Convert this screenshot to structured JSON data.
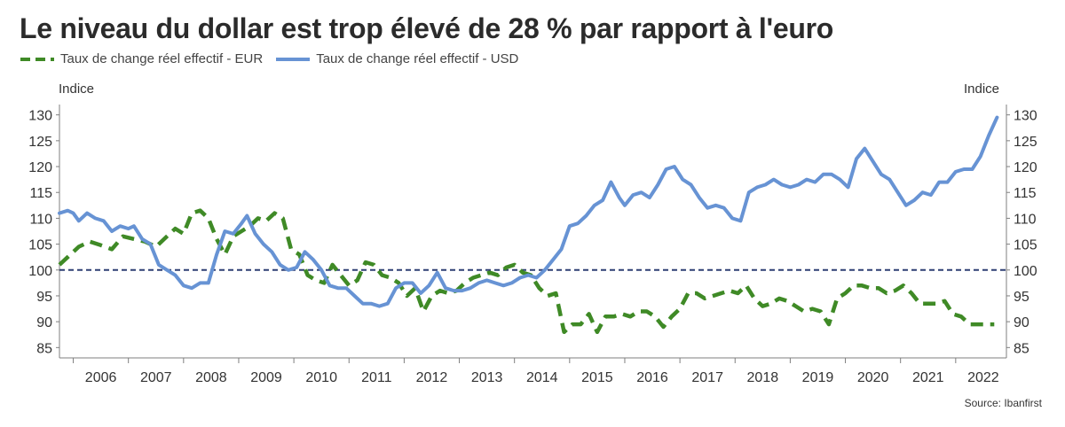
{
  "title": "Le niveau du dollar est trop élevé de 28 % par rapport à l'euro",
  "source": "Source: Ibanfirst",
  "colors": {
    "eur": "#3f8a26",
    "usd": "#6793d4",
    "reference": "#2e3f73",
    "axis": "#7f7f7f"
  },
  "chart_data": {
    "type": "line",
    "ylabel_left": "Indice",
    "ylabel_right": "Indice",
    "ylim": [
      83,
      132
    ],
    "yticks": [
      85,
      90,
      95,
      100,
      105,
      110,
      115,
      120,
      125,
      130
    ],
    "xlim": [
      2005.75,
      2022.92
    ],
    "xticks": [
      "2006",
      "2007",
      "2008",
      "2009",
      "2010",
      "2011",
      "2012",
      "2013",
      "2014",
      "2015",
      "2016",
      "2017",
      "2018",
      "2019",
      "2020",
      "2021",
      "2022"
    ],
    "reference_line": 100,
    "grid": false,
    "legend": "top-left",
    "series": [
      {
        "name": "Taux de change réel effectif - EUR",
        "style": "dashed",
        "x": [
          2005.75,
          2005.9,
          2006.1,
          2006.3,
          2006.5,
          2006.7,
          2006.9,
          2007.1,
          2007.3,
          2007.5,
          2007.7,
          2007.85,
          2008.0,
          2008.15,
          2008.3,
          2008.45,
          2008.6,
          2008.75,
          2008.9,
          2009.05,
          2009.2,
          2009.35,
          2009.5,
          2009.65,
          2009.8,
          2009.95,
          2010.1,
          2010.25,
          2010.4,
          2010.55,
          2010.7,
          2010.85,
          2011.0,
          2011.15,
          2011.3,
          2011.45,
          2011.6,
          2011.75,
          2011.9,
          2012.05,
          2012.2,
          2012.35,
          2012.5,
          2012.65,
          2012.8,
          2012.95,
          2013.1,
          2013.25,
          2013.4,
          2013.55,
          2013.7,
          2013.85,
          2014.0,
          2014.15,
          2014.3,
          2014.45,
          2014.6,
          2014.75,
          2014.9,
          2015.05,
          2015.2,
          2015.35,
          2015.5,
          2015.65,
          2015.8,
          2015.95,
          2016.1,
          2016.25,
          2016.4,
          2016.55,
          2016.7,
          2016.85,
          2017.0,
          2017.15,
          2017.3,
          2017.45,
          2017.6,
          2017.75,
          2017.9,
          2018.05,
          2018.2,
          2018.35,
          2018.5,
          2018.65,
          2018.8,
          2018.95,
          2019.1,
          2019.25,
          2019.4,
          2019.55,
          2019.7,
          2019.85,
          2020.0,
          2020.15,
          2020.3,
          2020.45,
          2020.6,
          2020.75,
          2020.9,
          2021.05,
          2021.2,
          2021.35,
          2021.5,
          2021.65,
          2021.8,
          2021.95,
          2022.1,
          2022.25,
          2022.4,
          2022.55,
          2022.7
        ],
        "values": [
          101.0,
          102.5,
          104.5,
          105.5,
          104.8,
          104.0,
          106.5,
          106.0,
          105.5,
          104.5,
          106.5,
          108.0,
          107.0,
          111.0,
          111.5,
          110.0,
          106.0,
          103.0,
          106.5,
          107.5,
          108.5,
          110.0,
          109.5,
          111.0,
          110.0,
          104.0,
          103.0,
          99.0,
          98.0,
          97.5,
          101.0,
          99.0,
          97.0,
          98.0,
          101.5,
          101.0,
          99.0,
          98.5,
          97.5,
          95.0,
          96.5,
          92.0,
          95.0,
          96.0,
          95.5,
          96.0,
          97.5,
          98.5,
          99.0,
          99.5,
          99.0,
          100.5,
          101.0,
          99.5,
          99.0,
          96.5,
          95.0,
          95.5,
          88.0,
          89.5,
          89.5,
          91.5,
          88.0,
          91.0,
          91.0,
          91.5,
          91.0,
          92.0,
          92.0,
          91.0,
          89.0,
          91.0,
          92.5,
          95.5,
          95.5,
          94.5,
          95.0,
          95.5,
          96.0,
          95.5,
          97.0,
          94.5,
          93.0,
          93.5,
          94.5,
          94.0,
          93.0,
          92.0,
          92.5,
          92.0,
          89.5,
          94.5,
          95.5,
          97.0,
          97.0,
          96.5,
          96.5,
          95.5,
          96.0,
          97.0,
          95.5,
          93.5,
          93.5,
          93.5,
          94.0,
          91.5,
          91.0,
          89.5,
          89.5,
          89.5,
          89.5
        ]
      },
      {
        "name": "Taux de change réel effectif - USD",
        "style": "solid",
        "x": [
          2005.75,
          2005.9,
          2006.0,
          2006.1,
          2006.25,
          2006.4,
          2006.55,
          2006.7,
          2006.85,
          2007.0,
          2007.1,
          2007.25,
          2007.4,
          2007.55,
          2007.7,
          2007.85,
          2008.0,
          2008.15,
          2008.3,
          2008.45,
          2008.6,
          2008.75,
          2008.9,
          2009.05,
          2009.15,
          2009.3,
          2009.45,
          2009.6,
          2009.75,
          2009.9,
          2010.05,
          2010.2,
          2010.35,
          2010.5,
          2010.65,
          2010.8,
          2010.95,
          2011.1,
          2011.25,
          2011.4,
          2011.55,
          2011.7,
          2011.85,
          2012.0,
          2012.15,
          2012.3,
          2012.45,
          2012.6,
          2012.75,
          2012.9,
          2013.05,
          2013.2,
          2013.35,
          2013.5,
          2013.65,
          2013.8,
          2013.95,
          2014.1,
          2014.25,
          2014.4,
          2014.55,
          2014.7,
          2014.85,
          2015.0,
          2015.15,
          2015.3,
          2015.45,
          2015.6,
          2015.75,
          2015.9,
          2016.0,
          2016.15,
          2016.3,
          2016.45,
          2016.6,
          2016.75,
          2016.9,
          2017.05,
          2017.2,
          2017.35,
          2017.5,
          2017.65,
          2017.8,
          2017.95,
          2018.1,
          2018.25,
          2018.4,
          2018.55,
          2018.7,
          2018.85,
          2019.0,
          2019.15,
          2019.3,
          2019.45,
          2019.6,
          2019.75,
          2019.9,
          2020.05,
          2020.2,
          2020.35,
          2020.5,
          2020.65,
          2020.8,
          2020.95,
          2021.1,
          2021.25,
          2021.4,
          2021.55,
          2021.7,
          2021.85,
          2022.0,
          2022.15,
          2022.3,
          2022.45,
          2022.6,
          2022.75
        ],
        "values": [
          111.0,
          111.5,
          111.0,
          109.5,
          111.0,
          110.0,
          109.5,
          107.5,
          108.5,
          108.0,
          108.5,
          106.0,
          105.0,
          101.0,
          100.0,
          99.0,
          97.0,
          96.5,
          97.5,
          97.5,
          103.0,
          107.5,
          107.0,
          109.0,
          110.5,
          107.0,
          105.0,
          103.5,
          101.0,
          100.0,
          100.5,
          103.5,
          102.0,
          100.0,
          97.0,
          96.5,
          96.5,
          95.0,
          93.5,
          93.5,
          93.0,
          93.5,
          96.5,
          97.5,
          97.5,
          95.5,
          97.0,
          99.5,
          96.5,
          96.0,
          96.0,
          96.5,
          97.5,
          98.0,
          97.5,
          97.0,
          97.5,
          98.5,
          99.0,
          98.5,
          100.0,
          102.0,
          104.0,
          108.5,
          109.0,
          110.5,
          112.5,
          113.5,
          117.0,
          114.0,
          112.5,
          114.5,
          115.0,
          114.0,
          116.5,
          119.5,
          120.0,
          117.5,
          116.5,
          114.0,
          112.0,
          112.5,
          112.0,
          110.0,
          109.5,
          115.0,
          116.0,
          116.5,
          117.5,
          116.5,
          116.0,
          116.5,
          117.5,
          117.0,
          118.5,
          118.5,
          117.5,
          116.0,
          121.5,
          123.5,
          121.0,
          118.5,
          117.5,
          115.0,
          112.5,
          113.5,
          115.0,
          114.5,
          117.0,
          117.0,
          119.0,
          119.5,
          119.5,
          122.0,
          126.0,
          129.5
        ]
      }
    ]
  }
}
